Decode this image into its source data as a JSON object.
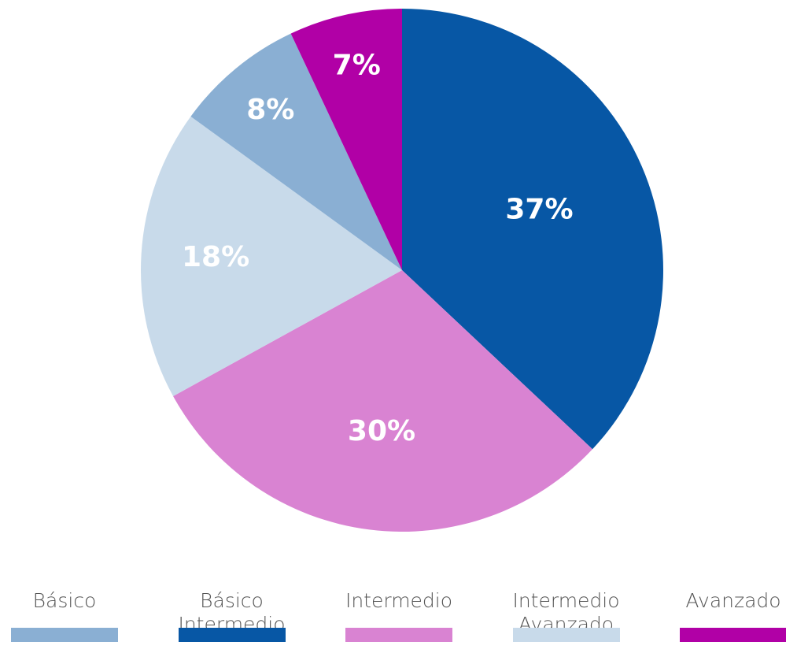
{
  "chart_data": {
    "type": "pie",
    "values": [
      37,
      30,
      18,
      8,
      7
    ],
    "value_labels": [
      "37%",
      "30%",
      "18%",
      "8%",
      "7%"
    ],
    "colors": [
      "#0757a5",
      "#d983d2",
      "#c8daea",
      "#8aafd3",
      "#b100a6"
    ],
    "legend": [
      {
        "label": "Básico",
        "color": "#8aafd3"
      },
      {
        "label": "Básico\nIntermedio",
        "color": "#0757a5"
      },
      {
        "label": "Intermedio",
        "color": "#d983d2"
      },
      {
        "label": "Intermedio\nAvanzado",
        "color": "#c8daea"
      },
      {
        "label": "Avanzado",
        "color": "#b100a6"
      }
    ]
  }
}
